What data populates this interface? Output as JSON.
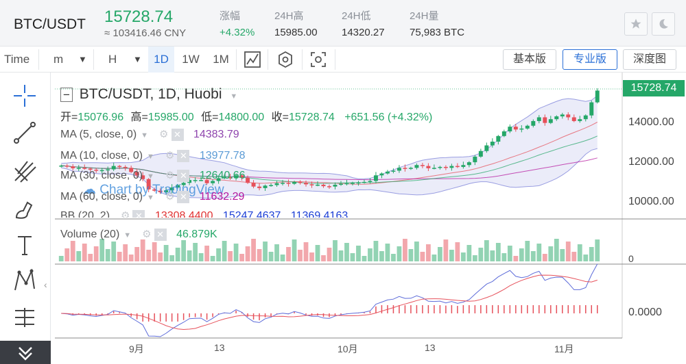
{
  "header": {
    "pair": "BTC/USDT",
    "last_price": "15728.74",
    "cny_price": "≈ 103416.46 CNY",
    "stats": [
      {
        "label": "涨幅",
        "value": "+4.32%"
      },
      {
        "label": "24H高",
        "value": "15985.00"
      },
      {
        "label": "24H低",
        "value": "14320.27"
      },
      {
        "label": "24H量",
        "value": "75,983 BTC"
      }
    ],
    "icons": [
      "star-icon",
      "moon-icon"
    ]
  },
  "toolbar": {
    "time_label": "Time",
    "intervals": [
      "m",
      "H",
      "1D",
      "1W",
      "1M"
    ],
    "selected_interval": "1D",
    "views": [
      "基本版",
      "专业版",
      "深度图"
    ],
    "active_view": "专业版"
  },
  "chart": {
    "title": "BTC/USDT, 1D, Huobi",
    "ohlc": {
      "o_label": "开=",
      "o": "15076.96",
      "h_label": "高=",
      "h": "15985.00",
      "l_label": "低=",
      "l": "14800.00",
      "c_label": "收=",
      "c": "15728.74",
      "change": "+651.56 (+4.32%)"
    },
    "indicators": [
      {
        "label": "MA (5, close, 0)",
        "value": "14383.79",
        "color": "#8e44ad"
      },
      {
        "label": "MA (10, close, 0)",
        "value": "13977.78",
        "color": "#5b9bd5"
      },
      {
        "label": "MA (30, close, 0)",
        "value": "12640.66",
        "color": "#25a768"
      },
      {
        "label": "MA (60, close, 0)",
        "value": "11632.29",
        "color": "#b5179e"
      },
      {
        "label": "BB (20, 2)",
        "values": [
          "13308.4400",
          "15247.4637",
          "11369.4163"
        ],
        "colors": [
          "#e03131",
          "#1c3fd6",
          "#1c3fd6"
        ]
      }
    ],
    "volume": {
      "label": "Volume (20)",
      "value": "46.879K"
    },
    "watermark": "Chart by TradingView",
    "price_tag": "15728.74",
    "y_axis": [
      "14000.00",
      "12000.00",
      "10000.00"
    ],
    "volume_axis": "0",
    "macd_axis": "0.0000",
    "x_axis": [
      "9月",
      "13",
      "10月",
      "13",
      "11月"
    ],
    "colors": {
      "up": "#25a768",
      "down": "#e6505a",
      "bands": "#7a7fd8"
    }
  },
  "chart_data": {
    "type": "candlestick",
    "series_close": [
      11720,
      11680,
      11580,
      11600,
      11560,
      11500,
      11450,
      11480,
      11520,
      11700,
      11650,
      11600,
      11380,
      11200,
      11000,
      10450,
      10380,
      10300,
      10400,
      10550,
      10680,
      10800,
      10950,
      10950,
      10950,
      10780,
      10900,
      11050,
      11100,
      11050,
      11200,
      11070,
      10800,
      10600,
      10520,
      10650,
      10680,
      10780,
      10800,
      10750,
      10850,
      10800,
      10720,
      10680,
      10700,
      10620,
      10600,
      10700,
      10750,
      10780,
      10800,
      10820,
      10850,
      10900,
      11200,
      11300,
      11400,
      11450,
      11600,
      11550,
      11600,
      11750,
      11700,
      11580,
      11600,
      11650,
      11600,
      11700,
      11650,
      11750,
      11900,
      12200,
      12500,
      12800,
      13000,
      13300,
      13550,
      13800,
      13650,
      13700,
      13850,
      14100,
      14300,
      14000,
      14200,
      14350,
      14450,
      14300,
      14100,
      14200,
      14400,
      15100,
      15728.74
    ],
    "y_range": [
      9200,
      16400
    ]
  },
  "drawing_tools": [
    "crosshair-icon",
    "trendline-icon",
    "fork-icon",
    "brush-icon",
    "text-icon",
    "pattern-icon",
    "measure-icon",
    "collapse-icon"
  ]
}
